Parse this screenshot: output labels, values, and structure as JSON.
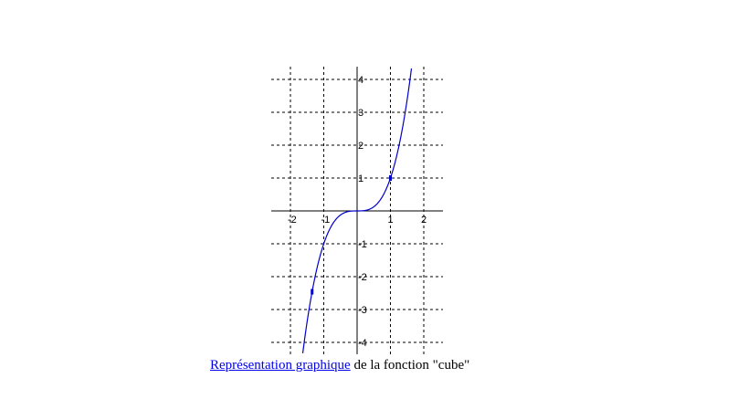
{
  "chart_data": {
    "type": "line",
    "function": "y = x^3",
    "xlim": [
      -2.1,
      2.4
    ],
    "ylim": [
      -4.3,
      4.3
    ],
    "x_ticks": [
      -2,
      -1,
      1,
      2
    ],
    "x_tick_labels": [
      "-2",
      "-1",
      "1",
      "2"
    ],
    "y_ticks": [
      -4,
      -3,
      -2,
      -1,
      1,
      2,
      3,
      4
    ],
    "y_tick_labels": [
      "-4",
      "-3",
      "-2",
      "-1",
      "1",
      "2",
      "3",
      "4"
    ],
    "grid": true,
    "grid_style": "dashed",
    "series": [
      {
        "x": [
          -1.6,
          -1.5,
          -1.4,
          -1.3,
          -1.2,
          -1.1,
          -1.0,
          -0.8,
          -0.6,
          -0.4,
          -0.2,
          0.0,
          0.2,
          0.4,
          0.6,
          0.8,
          1.0,
          1.1,
          1.2,
          1.3,
          1.4,
          1.5,
          1.6
        ],
        "y": [
          -4.096,
          -3.375,
          -2.744,
          -2.197,
          -1.728,
          -1.331,
          -1.0,
          -0.512,
          -0.216,
          -0.064,
          -0.008,
          0.0,
          0.008,
          0.064,
          0.216,
          0.512,
          1.0,
          1.331,
          1.728,
          2.197,
          2.744,
          3.375,
          4.096
        ],
        "color": "#0000cc"
      }
    ],
    "marked_points": [
      {
        "x": 1.0,
        "y": 1.0
      },
      {
        "x": -1.35,
        "y": -2.46
      }
    ],
    "axis_color": "#000000",
    "grid_color": "#000000"
  },
  "caption": {
    "link_text": "Représentation graphique",
    "rest_text": " de  la fonction \"cube\""
  }
}
